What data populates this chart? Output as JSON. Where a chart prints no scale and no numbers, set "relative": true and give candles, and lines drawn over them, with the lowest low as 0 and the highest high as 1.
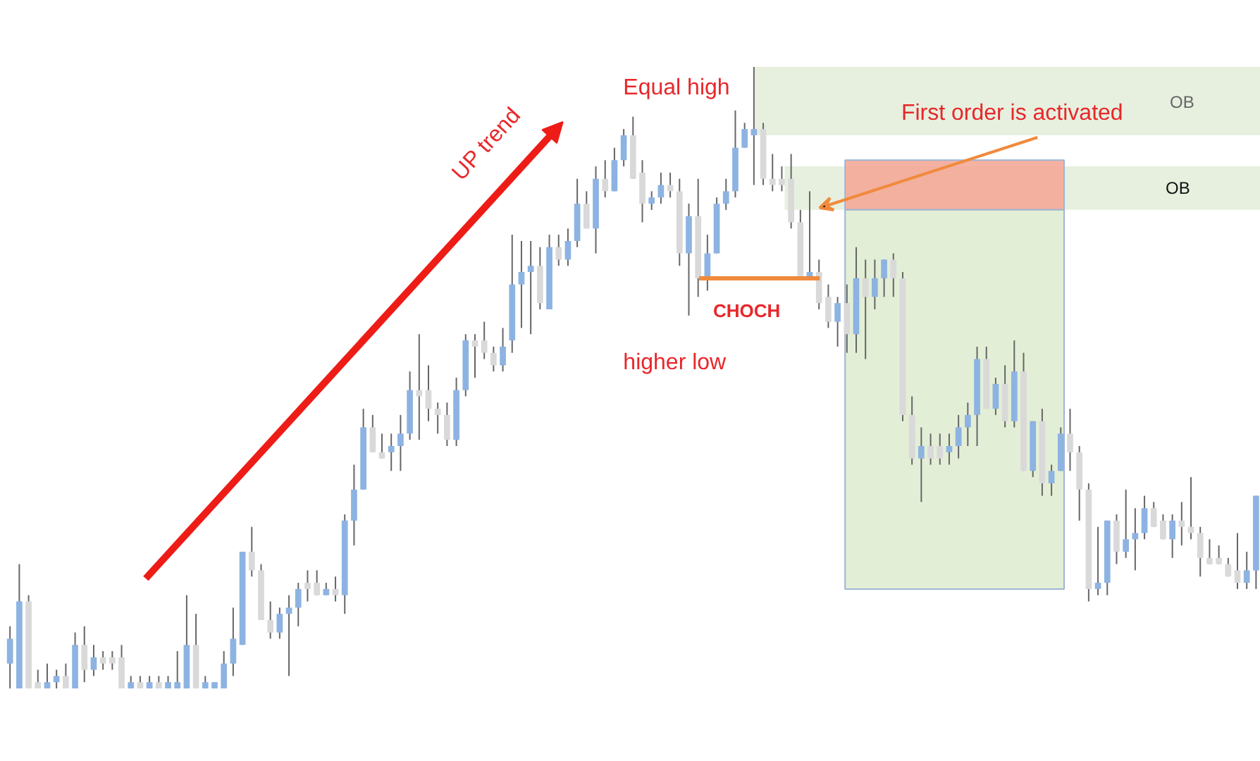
{
  "chart_data": {
    "type": "candlestick",
    "relative": true,
    "categories": [
      null,
      null,
      null,
      null,
      null,
      null,
      null,
      null,
      null,
      null,
      null,
      null,
      null,
      null,
      null,
      null,
      null,
      null,
      null,
      null,
      null,
      null,
      null,
      null,
      null,
      null,
      null,
      null,
      null,
      null,
      null,
      null,
      null,
      null,
      null,
      null,
      null,
      null,
      null,
      null,
      null,
      null,
      null,
      null,
      null,
      null,
      null,
      null,
      null,
      null,
      null,
      null,
      null,
      null,
      null,
      null,
      null,
      null,
      null,
      null,
      null,
      null,
      null,
      null,
      null,
      null,
      null,
      null,
      null,
      null,
      null,
      null,
      null,
      null,
      null,
      null,
      null,
      null,
      null,
      null,
      null,
      null,
      null,
      null,
      null,
      null,
      null,
      null,
      null,
      null,
      null,
      null,
      null,
      null,
      null,
      null,
      null,
      null,
      null,
      null,
      null,
      null,
      null,
      null,
      null,
      null,
      null,
      null,
      null,
      null,
      null,
      null,
      null,
      null,
      null,
      null,
      null,
      null,
      null,
      null,
      null,
      null,
      null,
      null,
      null,
      null,
      null,
      null,
      null,
      null,
      null,
      null,
      null,
      null,
      null
    ],
    "ohlc": [
      [
        0.04,
        0.1,
        0,
        0.08
      ],
      [
        0.0,
        0.2,
        0,
        0.14
      ],
      [
        0.14,
        0.15,
        0,
        0.0
      ],
      [
        0.01,
        0.03,
        0,
        0
      ],
      [
        0.0,
        0.04,
        0,
        0.01
      ],
      [
        0.01,
        0.03,
        0,
        0.02
      ],
      [
        0.02,
        0.04,
        0,
        0.0
      ],
      [
        0.0,
        0.09,
        0,
        0.07
      ],
      [
        0.07,
        0.1,
        0.01,
        0.03
      ],
      [
        0.03,
        0.07,
        0.02,
        0.05
      ],
      [
        0.05,
        0.06,
        0.03,
        0.04
      ],
      [
        0.05,
        0.06,
        0.03,
        0.04
      ],
      [
        0.05,
        0.07,
        0,
        0.0
      ],
      [
        0.0,
        0.02,
        0,
        0.01
      ],
      [
        0.01,
        0.02,
        0,
        0.0
      ],
      [
        0.0,
        0.02,
        0,
        0.01
      ],
      [
        0.01,
        0.02,
        0,
        0.0
      ],
      [
        0.0,
        0.02,
        0,
        0.01
      ],
      [
        0.0,
        0.06,
        0,
        0.01
      ],
      [
        0.0,
        0.15,
        0,
        0.07
      ],
      [
        0.07,
        0.12,
        0,
        0.0
      ],
      [
        0.0,
        0.02,
        0,
        0.01
      ],
      [
        0.0,
        0.01,
        0,
        0.01
      ],
      [
        0.0,
        0.06,
        0,
        0.04
      ],
      [
        0.04,
        0.13,
        0.02,
        0.08
      ],
      [
        0.07,
        0.22,
        0.07,
        0.22
      ],
      [
        0.22,
        0.26,
        0.18,
        0.19
      ],
      [
        0.19,
        0.2,
        0.11,
        0.11
      ],
      [
        0.11,
        0.14,
        0.08,
        0.09
      ],
      [
        0.09,
        0.13,
        0.08,
        0.12
      ],
      [
        0.12,
        0.15,
        0.02,
        0.13
      ],
      [
        0.13,
        0.17,
        0.1,
        0.16
      ],
      [
        0.17,
        0.19,
        0.14,
        0.16
      ],
      [
        0.17,
        0.19,
        0.15,
        0.15
      ],
      [
        0.15,
        0.17,
        0.15,
        0.16
      ],
      [
        0.16,
        0.18,
        0.14,
        0.15
      ],
      [
        0.15,
        0.28,
        0.12,
        0.27
      ],
      [
        0.27,
        0.36,
        0.23,
        0.32
      ],
      [
        0.32,
        0.45,
        0.32,
        0.42
      ],
      [
        0.42,
        0.44,
        0.38,
        0.38
      ],
      [
        0.38,
        0.41,
        0.37,
        0.37
      ],
      [
        0.38,
        0.41,
        0.35,
        0.39
      ],
      [
        0.39,
        0.44,
        0.35,
        0.41
      ],
      [
        0.41,
        0.51,
        0.4,
        0.48
      ],
      [
        0.48,
        0.57,
        0.4,
        0.47
      ],
      [
        0.48,
        0.52,
        0.43,
        0.45
      ],
      [
        0.45,
        0.46,
        0.41,
        0.44
      ],
      [
        0.44,
        0.46,
        0.39,
        0.4
      ],
      [
        0.4,
        0.5,
        0.39,
        0.48
      ],
      [
        0.48,
        0.57,
        0.47,
        0.56
      ],
      [
        0.56,
        0.57,
        0.5,
        0.55
      ],
      [
        0.56,
        0.59,
        0.53,
        0.54
      ],
      [
        0.54,
        0.55,
        0.51,
        0.52
      ],
      [
        0.52,
        0.58,
        0.51,
        0.55
      ],
      [
        0.56,
        0.73,
        0.54,
        0.65
      ],
      [
        0.65,
        0.72,
        0.58,
        0.67
      ],
      [
        0.67,
        0.72,
        0.57,
        0.68
      ],
      [
        0.68,
        0.71,
        0.61,
        0.62
      ],
      [
        0.61,
        0.73,
        0.61,
        0.71
      ],
      [
        0.71,
        0.73,
        0.68,
        0.69
      ],
      [
        0.69,
        0.74,
        0.68,
        0.72
      ],
      [
        0.72,
        0.82,
        0.71,
        0.78
      ],
      [
        0.78,
        0.8,
        0.74,
        0.74
      ],
      [
        0.74,
        0.84,
        0.7,
        0.82
      ],
      [
        0.82,
        0.85,
        0.79,
        0.8
      ],
      [
        0.8,
        0.87,
        0.8,
        0.85
      ],
      [
        0.85,
        0.9,
        0.84,
        0.89
      ],
      [
        0.89,
        0.92,
        0.82,
        0.82
      ],
      [
        0.83,
        0.85,
        0.75,
        0.78
      ],
      [
        0.78,
        0.8,
        0.77,
        0.79
      ],
      [
        0.79,
        0.83,
        0.78,
        0.81
      ],
      [
        0.81,
        0.83,
        0.79,
        0.8
      ],
      [
        0.8,
        0.82,
        0.68,
        0.7
      ],
      [
        0.7,
        0.78,
        0.6,
        0.76
      ],
      [
        0.76,
        0.82,
        0.63,
        0.66
      ],
      [
        0.66,
        0.73,
        0.64,
        0.7
      ],
      [
        0.7,
        0.79,
        0.7,
        0.78
      ],
      [
        0.78,
        0.82,
        0.77,
        0.8
      ],
      [
        0.8,
        0.93,
        0.79,
        0.87
      ],
      [
        0.87,
        0.91,
        0.87,
        0.9
      ],
      [
        0.89,
        1.0,
        0.81,
        0.9
      ],
      [
        0.9,
        0.91,
        0.81,
        0.82
      ],
      [
        0.82,
        0.86,
        0.8,
        0.81
      ],
      [
        0.82,
        0.84,
        0.8,
        0.81
      ],
      [
        0.82,
        0.86,
        0.74,
        0.75
      ],
      [
        0.75,
        0.77,
        0.66,
        0.66
      ],
      [
        0.66,
        0.8,
        0.66,
        0.67
      ],
      [
        0.67,
        0.69,
        0.61,
        0.62
      ],
      [
        0.63,
        0.65,
        0.58,
        0.59
      ],
      [
        0.59,
        0.63,
        0.55,
        0.62
      ],
      [
        0.62,
        0.65,
        0.54,
        0.57
      ],
      [
        0.57,
        0.71,
        0.54,
        0.66
      ],
      [
        0.66,
        0.69,
        0.53,
        0.63
      ],
      [
        0.63,
        0.69,
        0.61,
        0.66
      ],
      [
        0.66,
        0.69,
        0.63,
        0.69
      ],
      [
        0.69,
        0.7,
        0.63,
        0.66
      ],
      [
        0.66,
        0.67,
        0.43,
        0.44
      ],
      [
        0.44,
        0.47,
        0.36,
        0.37
      ],
      [
        0.37,
        0.42,
        0.3,
        0.39
      ],
      [
        0.39,
        0.41,
        0.36,
        0.37
      ],
      [
        0.39,
        0.41,
        0.36,
        0.37
      ],
      [
        0.38,
        0.41,
        0.36,
        0.39
      ],
      [
        0.39,
        0.44,
        0.37,
        0.42
      ],
      [
        0.42,
        0.46,
        0.39,
        0.44
      ],
      [
        0.44,
        0.55,
        0.39,
        0.53
      ],
      [
        0.53,
        0.55,
        0.45,
        0.45
      ],
      [
        0.45,
        0.5,
        0.44,
        0.49
      ],
      [
        0.49,
        0.52,
        0.42,
        0.43
      ],
      [
        0.43,
        0.56,
        0.42,
        0.51
      ],
      [
        0.51,
        0.54,
        0.35,
        0.35
      ],
      [
        0.35,
        0.43,
        0.34,
        0.43
      ],
      [
        0.43,
        0.45,
        0.31,
        0.33
      ],
      [
        0.33,
        0.36,
        0.31,
        0.35
      ],
      [
        0.35,
        0.42,
        0.35,
        0.41
      ],
      [
        0.41,
        0.45,
        0.35,
        0.38
      ],
      [
        0.38,
        0.39,
        0.27,
        0.32
      ],
      [
        0.32,
        0.33,
        0.14,
        0.16
      ],
      [
        0.16,
        0.26,
        0.15,
        0.17
      ],
      [
        0.17,
        0.27,
        0.15,
        0.27
      ],
      [
        0.27,
        0.28,
        0.2,
        0.22
      ],
      [
        0.22,
        0.32,
        0.21,
        0.24
      ],
      [
        0.24,
        0.29,
        0.19,
        0.25
      ],
      [
        0.25,
        0.31,
        0.24,
        0.29
      ],
      [
        0.29,
        0.3,
        0.26,
        0.26
      ],
      [
        0.27,
        0.28,
        0.24,
        0.24
      ],
      [
        0.24,
        0.28,
        0.21,
        0.27
      ],
      [
        0.27,
        0.3,
        0.23,
        0.26
      ],
      [
        0.26,
        0.34,
        0.24,
        0.25
      ],
      [
        0.25,
        0.26,
        0.18,
        0.21
      ],
      [
        0.21,
        0.24,
        0.2,
        0.2
      ],
      [
        0.21,
        0.23,
        0.2,
        0.2
      ],
      [
        0.2,
        0.21,
        0.18,
        0.18
      ],
      [
        0.19,
        0.25,
        0.16,
        0.17
      ],
      [
        0.17,
        0.22,
        0.16,
        0.19
      ],
      [
        0.19,
        0.31,
        0.16,
        0.31
      ]
    ],
    "annotations": [
      "UP trend",
      "Equal high",
      "First order is activated",
      "higher low"
    ],
    "bands": [
      {
        "axis": "y",
        "from": 0.89,
        "to": 1.0,
        "label": "OB",
        "color": "#e3edd9"
      },
      {
        "axis": "y",
        "from": 0.77,
        "to": 0.84,
        "label": "OB",
        "color": "#e3edd9"
      },
      {
        "axis": "y",
        "from": 0.77,
        "to": 0.85,
        "label": null,
        "color": "#f4a898"
      },
      {
        "axis": "y",
        "from": 0.16,
        "to": 0.77,
        "label": null,
        "color": "#e0ecd2"
      }
    ],
    "ref_lines": [
      {
        "axis": "y",
        "value": 0.66,
        "label": "CHOCH",
        "color": "#f08a3c"
      }
    ]
  }
}
